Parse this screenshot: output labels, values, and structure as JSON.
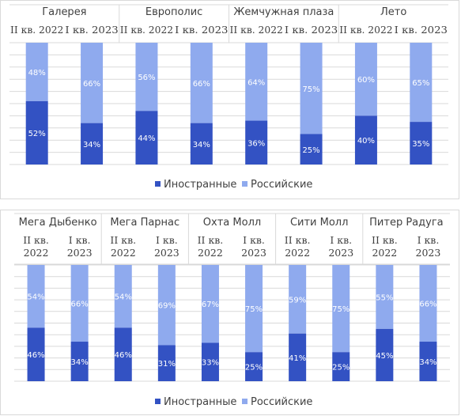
{
  "colors": {
    "foreign": "#3352c3",
    "russian": "#8faaee",
    "grid": "#d9d9d9",
    "text": "#404040"
  },
  "chart_data": [
    {
      "type": "bar",
      "stacked": true,
      "percent": true,
      "groups": [
        "Галерея",
        "Европолис",
        "Жемчужная плаза",
        "Лето"
      ],
      "periods": [
        "II кв. 2022",
        "I кв. 2023"
      ],
      "series": [
        {
          "name": "Иностранные",
          "values": [
            52,
            34,
            44,
            34,
            36,
            25,
            40,
            35
          ]
        },
        {
          "name": "Российские",
          "values": [
            48,
            66,
            56,
            66,
            64,
            75,
            60,
            65
          ]
        }
      ],
      "ylim": [
        0,
        100
      ],
      "legend": "bottom"
    },
    {
      "type": "bar",
      "stacked": true,
      "percent": true,
      "groups": [
        "Мега Дыбенко",
        "Мега Парнас",
        "Охта Молл",
        "Сити Молл",
        "Питер Радуга"
      ],
      "periods": [
        [
          "II кв.",
          "2022"
        ],
        [
          "I кв.",
          "2023"
        ]
      ],
      "series": [
        {
          "name": "Иностранные",
          "values": [
            46,
            34,
            46,
            31,
            33,
            25,
            41,
            25,
            45,
            34
          ]
        },
        {
          "name": "Российские",
          "values": [
            54,
            66,
            54,
            69,
            67,
            75,
            59,
            75,
            55,
            66
          ]
        }
      ],
      "ylim": [
        0,
        100
      ],
      "legend": "bottom"
    }
  ]
}
